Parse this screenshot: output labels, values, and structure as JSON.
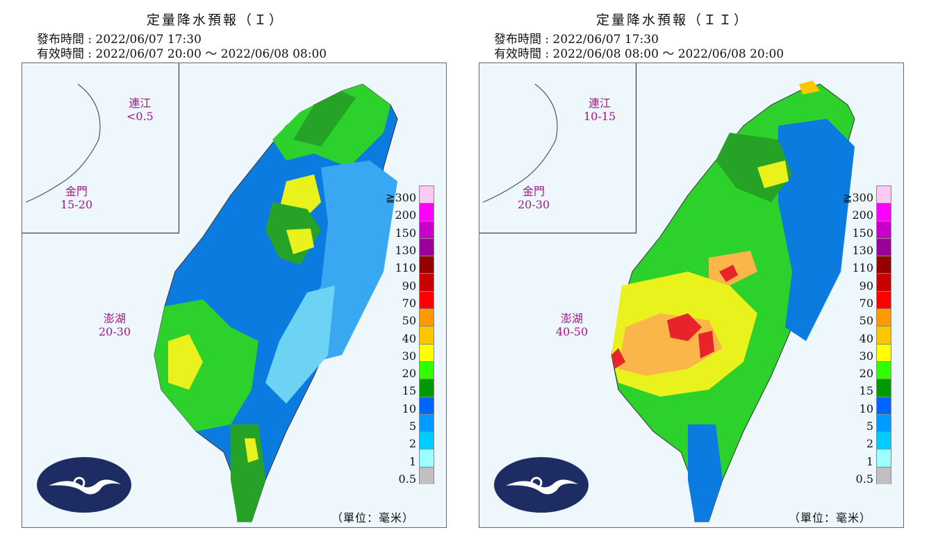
{
  "panels": [
    {
      "title": "定量降水預報（Ｉ）",
      "issue_time": "發布時間 : 2022/06/07 17:30",
      "valid_time": "有效時間 : 2022/06/07 20:00 ～ 2022/06/08 08:00",
      "islands": [
        {
          "name": "連江",
          "value": "<0.5"
        },
        {
          "name": "金門",
          "value": "15-20"
        },
        {
          "name": "澎湖",
          "value": "20-30"
        }
      ],
      "unit": "（單位：毫米）"
    },
    {
      "title": "定量降水預報（ＩＩ）",
      "issue_time": "發布時間 : 2022/06/07 17:30",
      "valid_time": "有效時間 : 2022/06/08 08:00 ～ 2022/06/08 20:00",
      "islands": [
        {
          "name": "連江",
          "value": "10-15"
        },
        {
          "name": "金門",
          "value": "20-30"
        },
        {
          "name": "澎湖",
          "value": "40-50"
        }
      ],
      "unit": "（單位：毫米）"
    }
  ],
  "legend": {
    "ticks": [
      "≧300",
      "200",
      "150",
      "130",
      "110",
      "90",
      "70",
      "50",
      "40",
      "30",
      "20",
      "15",
      "10",
      "5",
      "2",
      "1",
      "0.5"
    ],
    "colors": [
      "#fdc8f4",
      "#fc00fc",
      "#c800c8",
      "#9a009a",
      "#960000",
      "#c80000",
      "#fe0000",
      "#fe9a00",
      "#fdc700",
      "#ffff00",
      "#31ff00",
      "#009b00",
      "#0064ff",
      "#009bff",
      "#00ccff",
      "#9dfeff",
      "#c0c0c0"
    ]
  },
  "island_colors": {
    "marker": "#a0178a"
  }
}
